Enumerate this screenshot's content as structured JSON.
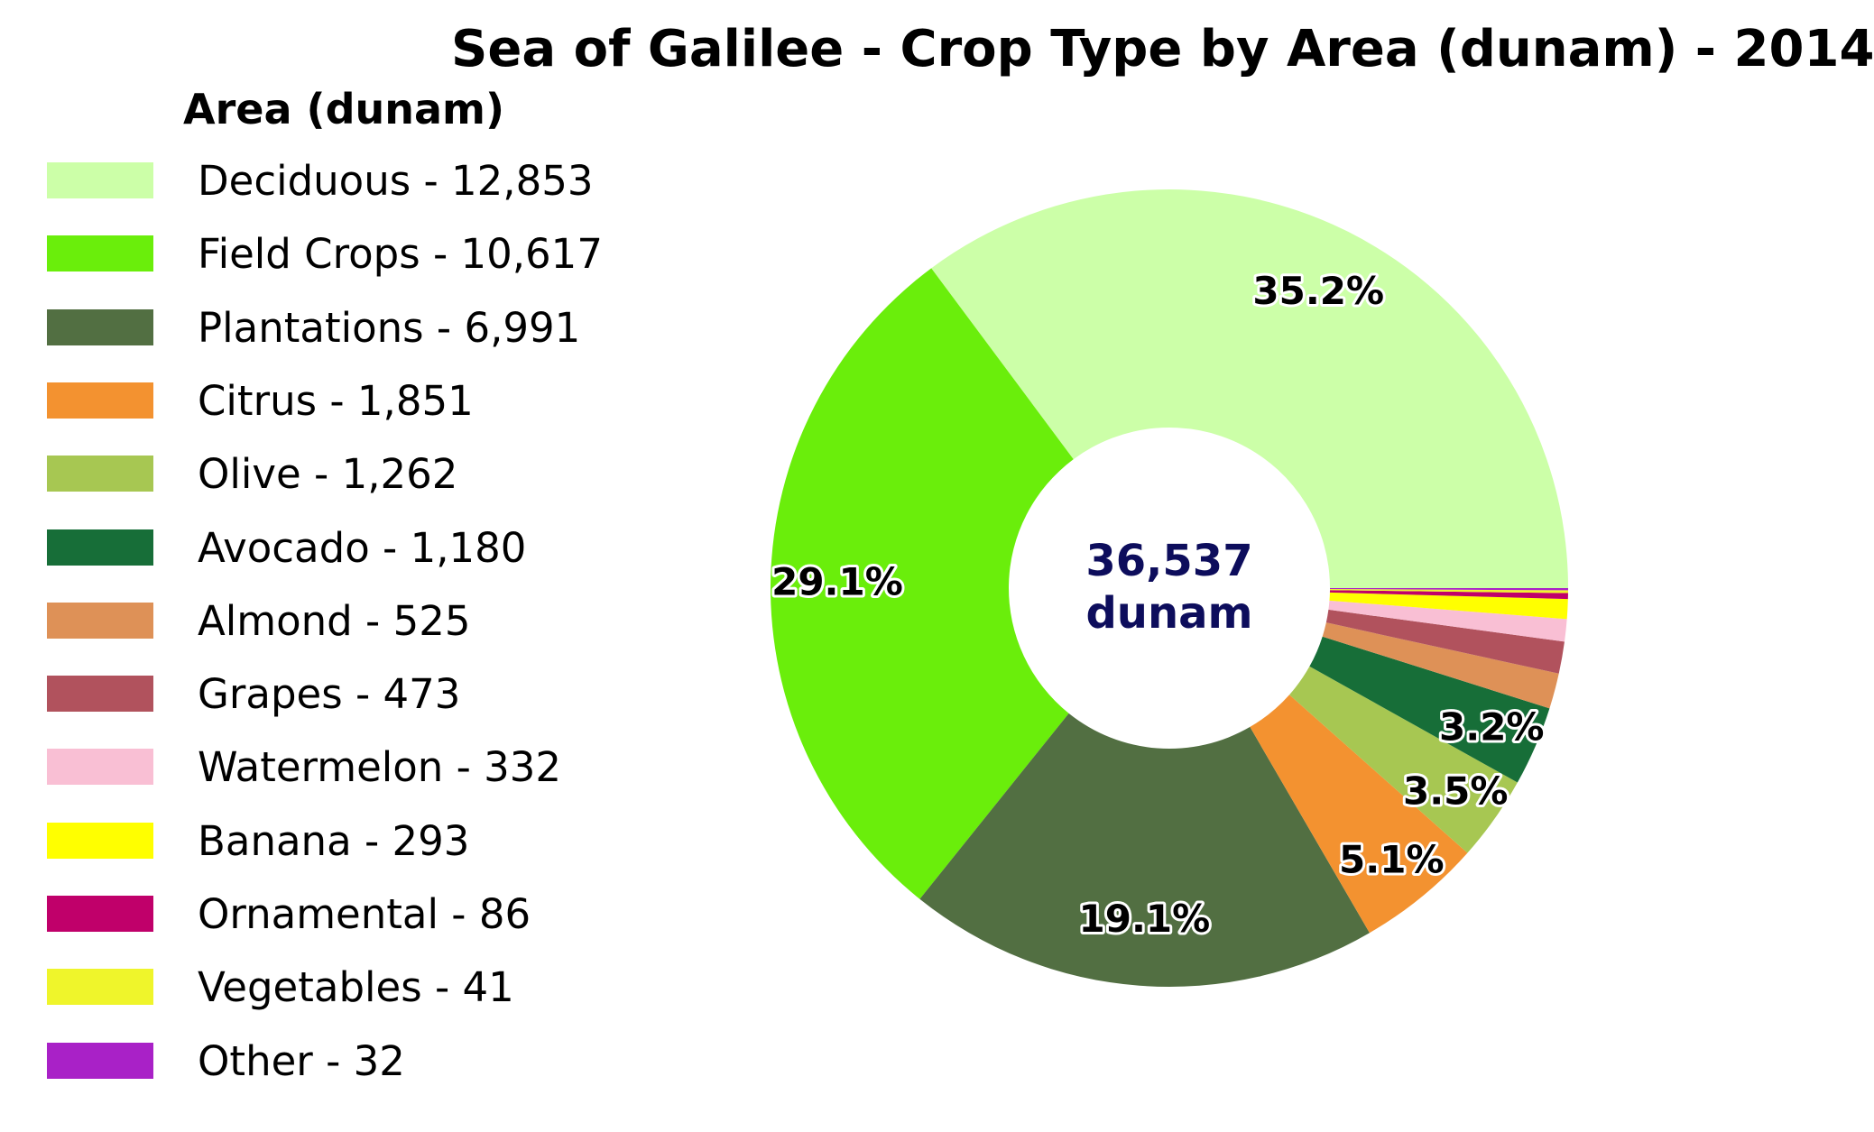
{
  "chart_data": {
    "type": "pie",
    "title": "Sea of Galilee - Crop Type by Area (dunam) - 2014",
    "legend_title": "Area (dunam)",
    "legend_position": "left",
    "donut": true,
    "center_text": [
      "36,537",
      "dunam"
    ],
    "center_text_color": "#0d0d5c",
    "total": 36537,
    "slices": [
      {
        "label": "Deciduous - 12,853",
        "category": "Deciduous",
        "value": 12853,
        "color": "#ccffa8",
        "pct_label": "35.2%"
      },
      {
        "label": "Field Crops - 10,617",
        "category": "Field Crops",
        "value": 10617,
        "color": "#6aee0b",
        "pct_label": "29.1%"
      },
      {
        "label": "Plantations - 6,991",
        "category": "Plantations",
        "value": 6991,
        "color": "#526f42",
        "pct_label": "19.1%"
      },
      {
        "label": "Citrus - 1,851",
        "category": "Citrus",
        "value": 1851,
        "color": "#f39230",
        "pct_label": "5.1%"
      },
      {
        "label": "Olive - 1,262",
        "category": "Olive",
        "value": 1262,
        "color": "#a7c752",
        "pct_label": "3.5%"
      },
      {
        "label": "Avocado - 1,180",
        "category": "Avocado",
        "value": 1180,
        "color": "#176e38",
        "pct_label": "3.2%"
      },
      {
        "label": "Almond - 525",
        "category": "Almond",
        "value": 525,
        "color": "#de9157",
        "pct_label": ""
      },
      {
        "label": "Grapes - 473",
        "category": "Grapes",
        "value": 473,
        "color": "#b1525d",
        "pct_label": ""
      },
      {
        "label": "Watermelon - 332",
        "category": "Watermelon",
        "value": 332,
        "color": "#f9bfd4",
        "pct_label": ""
      },
      {
        "label": "Banana - 293",
        "category": "Banana",
        "value": 293,
        "color": "#ffff00",
        "pct_label": ""
      },
      {
        "label": "Ornamental - 86",
        "category": "Ornamental",
        "value": 86,
        "color": "#c0006a",
        "pct_label": ""
      },
      {
        "label": "Vegetables - 41",
        "category": "Vegetables",
        "value": 41,
        "color": "#eff52b",
        "pct_label": ""
      },
      {
        "label": "Other - 32",
        "category": "Other",
        "value": 32,
        "color": "#a921c7",
        "pct_label": ""
      }
    ]
  }
}
